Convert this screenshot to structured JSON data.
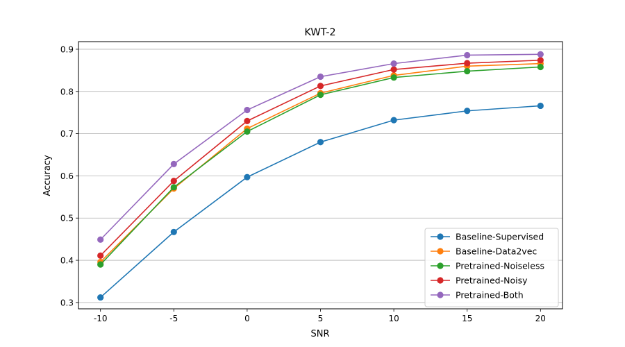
{
  "chart_data": {
    "type": "line",
    "title": "KWT-2",
    "xlabel": "SNR",
    "ylabel": "Accuracy",
    "x": [
      -10,
      -5,
      0,
      5,
      10,
      15,
      20
    ],
    "x_tick_labels": [
      "-10",
      "-5",
      "0",
      "5",
      "10",
      "15",
      "20"
    ],
    "xlim": [
      -11.5,
      21.5
    ],
    "ylim": [
      0.285,
      0.918
    ],
    "y_ticks": [
      0.3,
      0.4,
      0.5,
      0.6,
      0.7,
      0.8,
      0.9
    ],
    "y_tick_labels": [
      "0.3",
      "0.4",
      "0.5",
      "0.6",
      "0.7",
      "0.8",
      "0.9"
    ],
    "grid": "horizontal",
    "legend_position": "lower-right",
    "series": [
      {
        "name": "Baseline-Supervised",
        "color": "#1f77b4",
        "values": [
          0.312,
          0.467,
          0.597,
          0.68,
          0.732,
          0.754,
          0.766
        ]
      },
      {
        "name": "Baseline-Data2vec",
        "color": "#ff7f0e",
        "values": [
          0.396,
          0.57,
          0.712,
          0.796,
          0.838,
          0.86,
          0.866
        ]
      },
      {
        "name": "Pretrained-Noiseless",
        "color": "#2ca02c",
        "values": [
          0.39,
          0.573,
          0.705,
          0.792,
          0.833,
          0.848,
          0.858
        ]
      },
      {
        "name": "Pretrained-Noisy",
        "color": "#d62728",
        "values": [
          0.411,
          0.588,
          0.73,
          0.813,
          0.852,
          0.867,
          0.874
        ]
      },
      {
        "name": "Pretrained-Both",
        "color": "#9467bd",
        "values": [
          0.449,
          0.628,
          0.756,
          0.835,
          0.866,
          0.886,
          0.888
        ]
      }
    ]
  }
}
